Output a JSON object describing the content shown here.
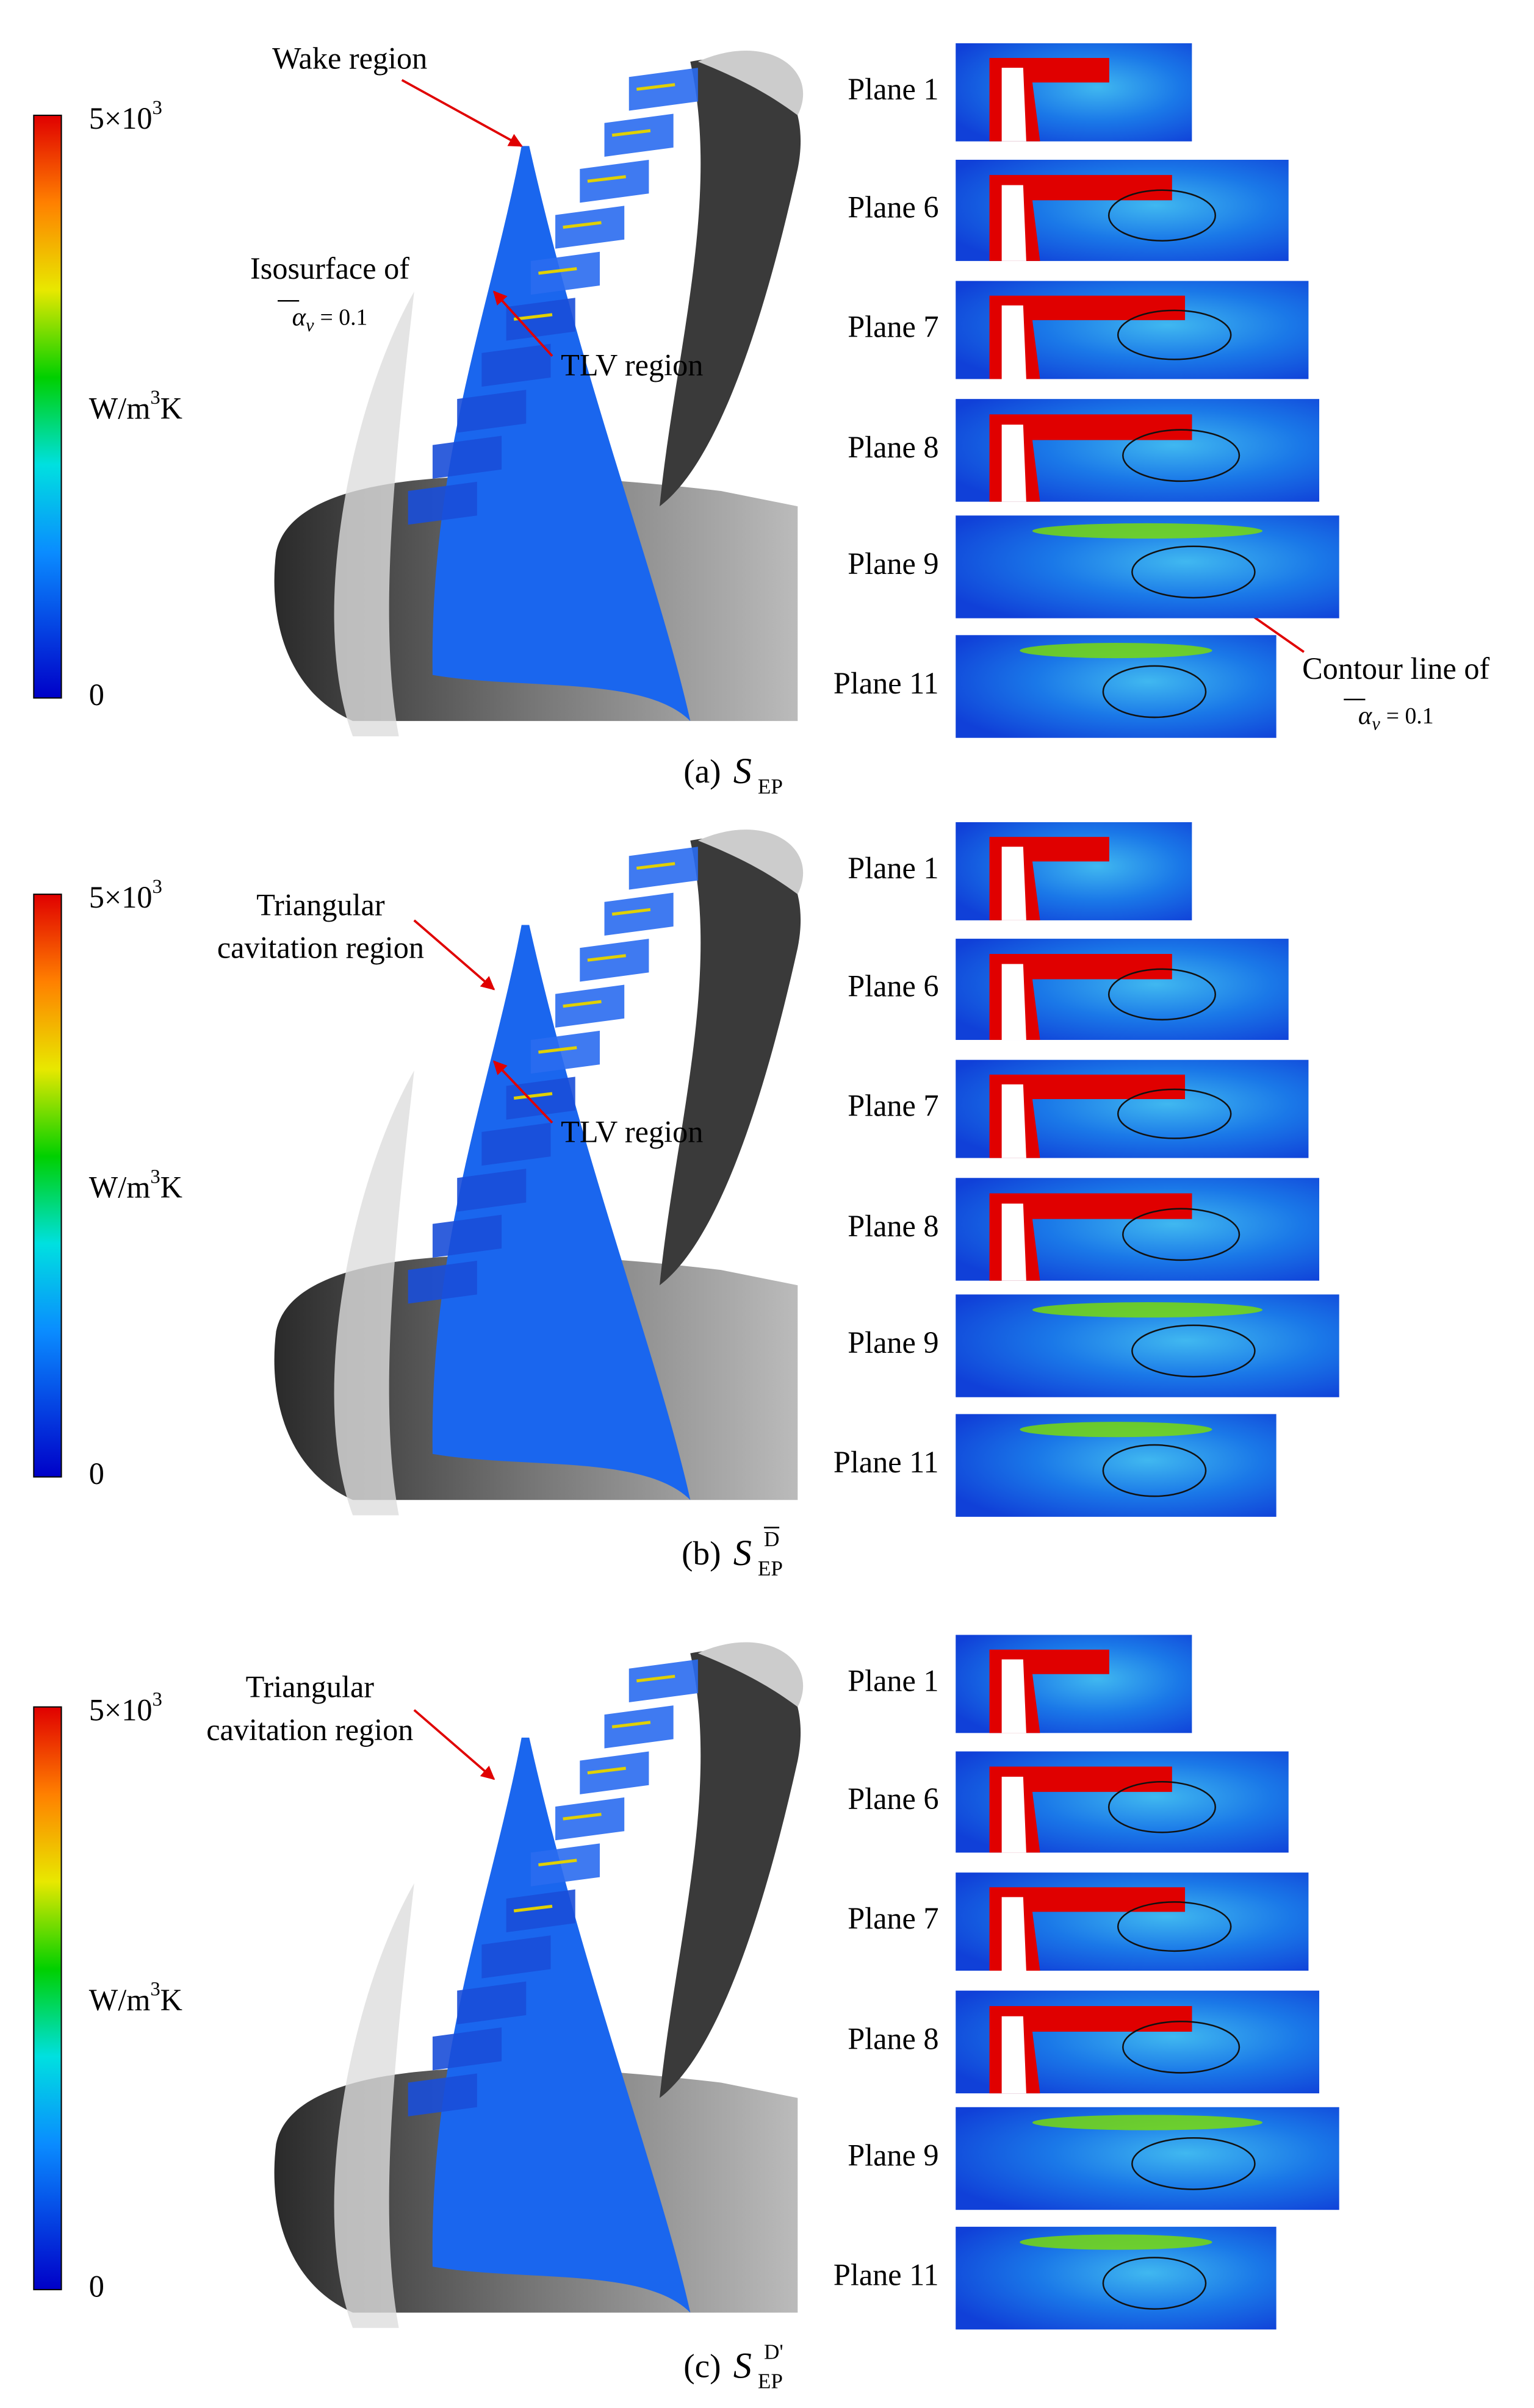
{
  "panels": [
    {
      "colorbar": {
        "max": {
          "base": "5×10",
          "exp": "3"
        },
        "unit": {
          "base": "W/m",
          "exp": "3",
          "tail": "K"
        },
        "min": "0"
      },
      "annotations": [
        {
          "lines": [
            "Wake region"
          ]
        },
        {
          "lines": [
            "Isosurface of"
          ],
          "formula": {
            "symbol": "α",
            "sub": "v",
            "rhs": "= 0.1"
          }
        },
        {
          "lines": [
            "TLV region"
          ]
        },
        {
          "lines": [
            "Contour line of"
          ],
          "formula": {
            "symbol": "α",
            "sub": "v",
            "rhs": "= 0.1"
          }
        }
      ],
      "planes": [
        "Plane 1",
        "Plane 6",
        "Plane 7",
        "Plane 8",
        "Plane 9",
        "Plane 11"
      ],
      "caption": {
        "label": "(a)",
        "symbol": "S",
        "sub": "EP"
      }
    },
    {
      "colorbar": {
        "max": {
          "base": "5×10",
          "exp": "3"
        },
        "unit": {
          "base": "W/m",
          "exp": "3",
          "tail": "K"
        },
        "min": "0"
      },
      "annotations": [
        {
          "lines": [
            "Triangular",
            "cavitation region"
          ]
        },
        {
          "lines": [
            "TLV region"
          ]
        }
      ],
      "planes": [
        "Plane 1",
        "Plane 6",
        "Plane 7",
        "Plane 8",
        "Plane 9",
        "Plane 11"
      ],
      "caption": {
        "label": "(b)",
        "symbol": "S",
        "sub": "EP",
        "sup": "D"
      }
    },
    {
      "colorbar": {
        "max": {
          "base": "5×10",
          "exp": "3"
        },
        "unit": {
          "base": "W/m",
          "exp": "3",
          "tail": "K"
        },
        "min": "0"
      },
      "annotations": [
        {
          "lines": [
            "Triangular",
            "cavitation region"
          ]
        }
      ],
      "planes": [
        "Plane 1",
        "Plane 6",
        "Plane 7",
        "Plane 8",
        "Plane 9",
        "Plane 11"
      ],
      "caption": {
        "label": "(c)",
        "symbol": "S",
        "sub": "EP",
        "sup": "D'"
      }
    }
  ]
}
